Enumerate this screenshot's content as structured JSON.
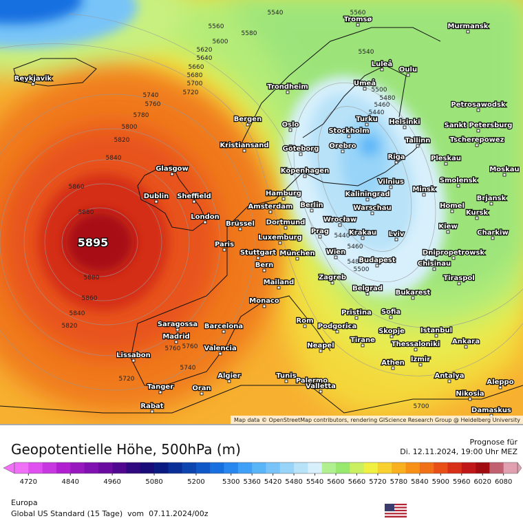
{
  "map": {
    "attribution": "Map data © OpenStreetMap contributors, rendering GIScience Research Group @ Heidelberg University",
    "cities": [
      "Reykjavik",
      "Tromsø",
      "Murmansk",
      "Luleå",
      "Oulu",
      "Umeå",
      "Trondheim",
      "Petrosawodsk",
      "Bergen",
      "Oslo",
      "Helsinki",
      "Sankt Petersburg",
      "Turku",
      "Stockholm",
      "Kristiansand",
      "Göteborg",
      "Orebro",
      "Tallinn",
      "Tscherepowez",
      "Glasgow",
      "Kopenhagen",
      "Riga",
      "Pleskau",
      "Moskau",
      "Dublin",
      "Sheffield",
      "Hamburg",
      "Kaliningrad",
      "Vilnius",
      "Smolensk",
      "Minsk",
      "Brjansk",
      "Amsterdam",
      "Berlin",
      "Warschau",
      "Homel",
      "Kursk",
      "London",
      "Brüssel",
      "Dortmund",
      "Wrocław",
      "Krakau",
      "Kiew",
      "Charkiw",
      "Paris",
      "Luxemburg",
      "Prag",
      "Lviv",
      "Stuttgart",
      "München",
      "Wien",
      "Budapest",
      "Chisinau",
      "Dnipropetrowsk",
      "Bern",
      "Zagreb",
      "Tiraspol",
      "Mailand",
      "Belgrad",
      "Bukarest",
      "Monaco",
      "Pristina",
      "Sofia",
      "Rom",
      "Podgorica",
      "Saragossa",
      "Barcelona",
      "Istanbul",
      "Madrid",
      "Skopje",
      "Tirane",
      "Ankara",
      "Neapel",
      "Thessaloniki",
      "Lissabon",
      "Valencia",
      "Izmir",
      "Athen",
      "Palermo",
      "Tunis",
      "Algier",
      "Antalya",
      "Aleppo",
      "Tanger",
      "Oran",
      "Valletta",
      "Nikosia",
      "Rabat",
      "Damaskus"
    ],
    "contour_labels": [
      5540,
      5560,
      5560,
      5580,
      5600,
      5620,
      5640,
      5660,
      5680,
      5700,
      5720,
      5740,
      5760,
      5780,
      5800,
      5820,
      5840,
      5860,
      5880,
      5895,
      5880,
      5860,
      5840,
      5820,
      5540,
      5500,
      5480,
      5460,
      5440,
      5440,
      5460,
      5480,
      5500,
      5760,
      5760,
      5740,
      5720,
      5700
    ]
  },
  "legend": {
    "title": "Geopotentielle Höhe, 500hPa (m)",
    "range": [
      4680,
      6120
    ],
    "ticks": [
      4720,
      4840,
      4960,
      5080,
      5200,
      5300,
      5360,
      5420,
      5480,
      5540,
      5600,
      5660,
      5720,
      5780,
      5840,
      5900,
      5960,
      6020,
      6080
    ],
    "colors": [
      "#f070f8",
      "#e050f0",
      "#c838e0",
      "#b020d0",
      "#9818c0",
      "#8010b0",
      "#6a0ca0",
      "#500890",
      "#300880",
      "#1a0c78",
      "#0a1a80",
      "#0a2e98",
      "#0c44b0",
      "#1058c8",
      "#1870e0",
      "#2888f0",
      "#40a0f8",
      "#5ab4f8",
      "#78c4f8",
      "#98d4f8",
      "#b8e2f8",
      "#d8f0fc",
      "#b0f090",
      "#98e870",
      "#c8f060",
      "#f0f040",
      "#f8d030",
      "#f8b020",
      "#f89018",
      "#f07018",
      "#e85018",
      "#d83018",
      "#c01818",
      "#a00c10",
      "#c06070",
      "#e0a0b0"
    ]
  },
  "footer": {
    "forecast_label": "Prognose für",
    "forecast_time": "Di. 12.11.2024, 19:00 Uhr MEZ",
    "region": "Europa",
    "model": "Global US Standard (15 Tage)  vom  07.11.2024/00z"
  }
}
